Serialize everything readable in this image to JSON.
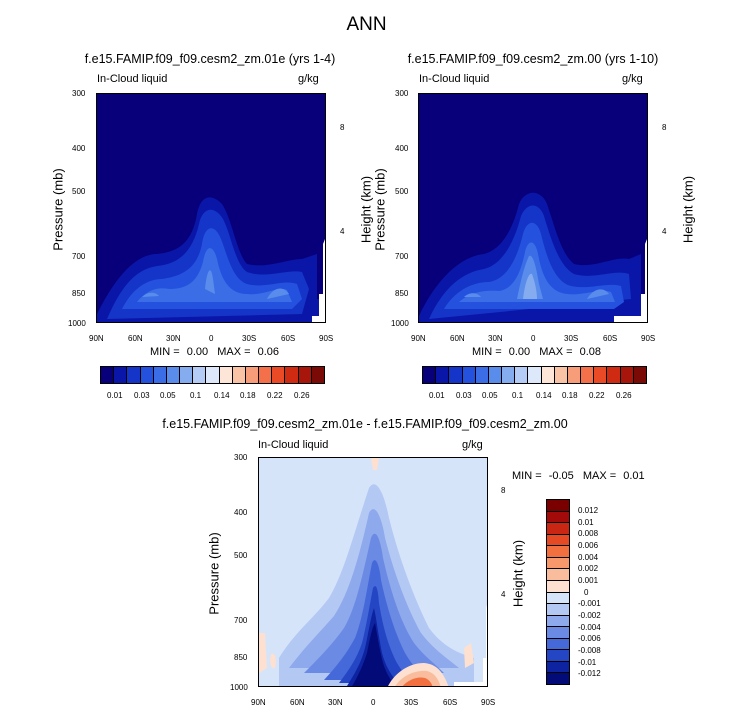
{
  "title": "ANN",
  "colors": {
    "labels_scale": [
      "0.01",
      "0.03",
      "0.05",
      "0.1",
      "0.14",
      "0.18",
      "0.22",
      "0.26"
    ],
    "seq": [
      "#08007a",
      "#0a16a8",
      "#1535c8",
      "#2452de",
      "#3b6ee6",
      "#5a8cec",
      "#86acf0",
      "#b5ccf6",
      "#dde8fb",
      "#fde5d8",
      "#fbc3a6",
      "#f89d79",
      "#f4704a",
      "#ea4a25",
      "#cf2a12",
      "#a8150b",
      "#7a0a05"
    ],
    "diff": [
      "#7a0000",
      "#a30a0a",
      "#c92714",
      "#e64a24",
      "#f2703f",
      "#f6986c",
      "#f9bd9d",
      "#fde0cf",
      "#d6e4fa",
      "#b3c8f3",
      "#8ea9ec",
      "#6b8ae4",
      "#4669d9",
      "#2546c4",
      "#0e23a0",
      "#020b78"
    ]
  },
  "panels": [
    {
      "title": "f.e15.FAMIP.f09_f09.cesm2_zm.01e (yrs 1-4)",
      "left_label": "In-Cloud liquid",
      "right_label": "g/kg",
      "ylabel": "Pressure (mb)",
      "ylabel2": "Height (km)",
      "yticks": [
        "300",
        "400",
        "500",
        "700",
        "850",
        "1000"
      ],
      "hticks": [
        "8",
        "4"
      ],
      "xticks": [
        "90N",
        "60N",
        "30N",
        "0",
        "30S",
        "60S",
        "90S"
      ],
      "min_label": "MIN =",
      "min_value": "0.00",
      "max_label": "MAX =",
      "max_value": "0.06"
    },
    {
      "title": "f.e15.FAMIP.f09_f09.cesm2_zm.00 (yrs 1-10)",
      "left_label": "In-Cloud liquid",
      "right_label": "g/kg",
      "ylabel": "Pressure (mb)",
      "ylabel2": "Height (km)",
      "yticks": [
        "300",
        "400",
        "500",
        "700",
        "850",
        "1000"
      ],
      "hticks": [
        "8",
        "4"
      ],
      "xticks": [
        "90N",
        "60N",
        "30N",
        "0",
        "30S",
        "60S",
        "90S"
      ],
      "min_label": "MIN =",
      "min_value": "0.00",
      "max_label": "MAX =",
      "max_value": "0.08"
    },
    {
      "title": "f.e15.FAMIP.f09_f09.cesm2_zm.01e - f.e15.FAMIP.f09_f09.cesm2_zm.00",
      "left_label": "In-Cloud liquid",
      "right_label": "g/kg",
      "ylabel": "Pressure (mb)",
      "ylabel2": "Height (km)",
      "yticks": [
        "300",
        "400",
        "500",
        "700",
        "850",
        "1000"
      ],
      "hticks": [
        "8",
        "4"
      ],
      "xticks": [
        "90N",
        "60N",
        "30N",
        "0",
        "30S",
        "60S",
        "90S"
      ],
      "min_label": "MIN =",
      "min_value": "-0.05",
      "max_label": "MAX =",
      "max_value": "0.01"
    }
  ],
  "colorbar_diff_labels": [
    "0.012",
    "0.01",
    "0.008",
    "0.006",
    "0.004",
    "0.002",
    "0.001",
    "0",
    "-0.001",
    "-0.002",
    "-0.004",
    "-0.006",
    "-0.008",
    "-0.01",
    "-0.012"
  ],
  "chart_data": [
    {
      "type": "heatmap",
      "title": "f.e15.FAMIP.f09_f09.cesm2_zm.01e (yrs 1-4)",
      "variable": "In-Cloud liquid",
      "units": "g/kg",
      "xlabel": "",
      "ylabel": "Pressure (mb)",
      "ylabel_right": "Height (km)",
      "x_ticks": [
        "90N",
        "60N",
        "30N",
        "0",
        "30S",
        "60S",
        "90S"
      ],
      "y_ticks": [
        300,
        400,
        500,
        700,
        850,
        1000
      ],
      "y_range": [
        300,
        1000
      ],
      "min": 0.0,
      "max": 0.06,
      "contour_levels": [
        0.01,
        0.03,
        0.05,
        0.1,
        0.14,
        0.18,
        0.22,
        0.26
      ]
    },
    {
      "type": "heatmap",
      "title": "f.e15.FAMIP.f09_f09.cesm2_zm.00 (yrs 1-10)",
      "variable": "In-Cloud liquid",
      "units": "g/kg",
      "xlabel": "",
      "ylabel": "Pressure (mb)",
      "ylabel_right": "Height (km)",
      "x_ticks": [
        "90N",
        "60N",
        "30N",
        "0",
        "30S",
        "60S",
        "90S"
      ],
      "y_ticks": [
        300,
        400,
        500,
        700,
        850,
        1000
      ],
      "y_range": [
        300,
        1000
      ],
      "min": 0.0,
      "max": 0.08,
      "contour_levels": [
        0.01,
        0.03,
        0.05,
        0.1,
        0.14,
        0.18,
        0.22,
        0.26
      ]
    },
    {
      "type": "heatmap",
      "title": "f.e15.FAMIP.f09_f09.cesm2_zm.01e - f.e15.FAMIP.f09_f09.cesm2_zm.00",
      "variable": "In-Cloud liquid",
      "units": "g/kg",
      "xlabel": "",
      "ylabel": "Pressure (mb)",
      "ylabel_right": "Height (km)",
      "x_ticks": [
        "90N",
        "60N",
        "30N",
        "0",
        "30S",
        "60S",
        "90S"
      ],
      "y_ticks": [
        300,
        400,
        500,
        700,
        850,
        1000
      ],
      "y_range": [
        300,
        1000
      ],
      "min": -0.05,
      "max": 0.01,
      "contour_levels": [
        0.012,
        0.01,
        0.008,
        0.006,
        0.004,
        0.002,
        0.001,
        0,
        -0.001,
        -0.002,
        -0.004,
        -0.006,
        -0.008,
        -0.01,
        -0.012
      ]
    }
  ]
}
